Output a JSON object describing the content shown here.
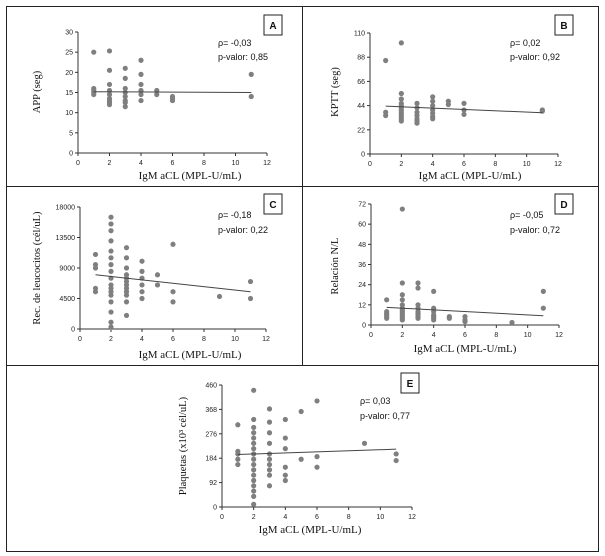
{
  "chart_data": [
    {
      "type": "scatter",
      "panel_label": "A",
      "xlabel": "IgM aCL (MPL-U/mL)",
      "ylabel": "APP (seg)",
      "xlim": [
        0,
        12
      ],
      "ylim": [
        0,
        30
      ],
      "xticks": [
        0,
        2,
        4,
        6,
        8,
        10,
        12
      ],
      "yticks": [
        0,
        5,
        10,
        15,
        20,
        25,
        30
      ],
      "xtick_labels": [
        "0",
        "2",
        "4",
        "6",
        "8",
        "10",
        "12"
      ],
      "ytick_labels": [
        "0",
        "5",
        "10",
        "15",
        "20",
        "25",
        "30"
      ],
      "rho": "ρ= -0,03",
      "pvalue": "p-valor: 0,85",
      "trend": [
        15.2,
        15.0
      ],
      "points": [
        [
          1,
          25
        ],
        [
          1,
          16
        ],
        [
          1,
          15.5
        ],
        [
          1,
          15
        ],
        [
          1,
          14.5
        ],
        [
          2,
          25.3
        ],
        [
          2,
          20.5
        ],
        [
          2,
          17
        ],
        [
          2,
          15.5
        ],
        [
          2,
          14.5
        ],
        [
          2,
          13.5
        ],
        [
          2,
          13
        ],
        [
          2,
          12.5
        ],
        [
          2,
          12
        ],
        [
          3,
          21
        ],
        [
          3,
          18.5
        ],
        [
          3,
          16
        ],
        [
          3,
          15
        ],
        [
          3,
          14
        ],
        [
          3,
          13
        ],
        [
          3,
          12.5
        ],
        [
          3,
          11.5
        ],
        [
          4,
          23
        ],
        [
          4,
          19.5
        ],
        [
          4,
          17
        ],
        [
          4,
          15.5
        ],
        [
          4,
          14.5
        ],
        [
          4,
          13
        ],
        [
          5,
          15.5
        ],
        [
          5,
          14.5
        ],
        [
          6,
          14
        ],
        [
          6,
          13.5
        ],
        [
          6,
          13
        ],
        [
          11,
          19.5
        ],
        [
          11,
          14
        ]
      ]
    },
    {
      "type": "scatter",
      "panel_label": "B",
      "xlabel": "IgM aCL (MPL-U/mL)",
      "ylabel": "KPTT (seg)",
      "xlim": [
        0,
        12
      ],
      "ylim": [
        0,
        110
      ],
      "xticks": [
        0,
        2,
        4,
        6,
        8,
        10,
        12
      ],
      "yticks": [
        0,
        22,
        44,
        66,
        88,
        110
      ],
      "xtick_labels": [
        "0",
        "2",
        "4",
        "6",
        "8",
        "10",
        "12"
      ],
      "ytick_labels": [
        "0",
        "22",
        "44",
        "66",
        "88",
        "110"
      ],
      "rho": "ρ= 0,02",
      "pvalue": "p-valor: 0,92",
      "trend": [
        43.5,
        37.5
      ],
      "points": [
        [
          1,
          85
        ],
        [
          1,
          38
        ],
        [
          1,
          35
        ],
        [
          2,
          101
        ],
        [
          2,
          55
        ],
        [
          2,
          50
        ],
        [
          2,
          46
        ],
        [
          2,
          44
        ],
        [
          2,
          42
        ],
        [
          2,
          40
        ],
        [
          2,
          38
        ],
        [
          2,
          36
        ],
        [
          2,
          34
        ],
        [
          2,
          32
        ],
        [
          2,
          30
        ],
        [
          3,
          46
        ],
        [
          3,
          42
        ],
        [
          3,
          38
        ],
        [
          3,
          35
        ],
        [
          3,
          32
        ],
        [
          3,
          30
        ],
        [
          3,
          28
        ],
        [
          4,
          52
        ],
        [
          4,
          48
        ],
        [
          4,
          44
        ],
        [
          4,
          40
        ],
        [
          4,
          37
        ],
        [
          4,
          34
        ],
        [
          4,
          32
        ],
        [
          5,
          48
        ],
        [
          5,
          45
        ],
        [
          6,
          46
        ],
        [
          6,
          40
        ],
        [
          6,
          36
        ],
        [
          11,
          40
        ],
        [
          11,
          39
        ]
      ]
    },
    {
      "type": "scatter",
      "panel_label": "C",
      "xlabel": "IgM aCL (MPL-U/mL)",
      "ylabel": "Rec. de leucocitos (cél/uL)",
      "xlim": [
        0,
        12
      ],
      "ylim": [
        0,
        18000
      ],
      "xticks": [
        0,
        2,
        4,
        6,
        8,
        10,
        12
      ],
      "yticks": [
        0,
        4500,
        9000,
        13500,
        18000
      ],
      "xtick_labels": [
        "0",
        "2",
        "4",
        "6",
        "8",
        "10",
        "12"
      ],
      "ytick_labels": [
        "0",
        "4500",
        "9000",
        "13500",
        "18000"
      ],
      "rho": "ρ= -0,18",
      "pvalue": "p-valor: 0,22",
      "trend": [
        8000,
        5500
      ],
      "points": [
        [
          1,
          11000
        ],
        [
          1,
          9500
        ],
        [
          1,
          9000
        ],
        [
          1,
          6000
        ],
        [
          1,
          5500
        ],
        [
          2,
          16500
        ],
        [
          2,
          15500
        ],
        [
          2,
          14500
        ],
        [
          2,
          13000
        ],
        [
          2,
          11500
        ],
        [
          2,
          10500
        ],
        [
          2,
          9500
        ],
        [
          2,
          8500
        ],
        [
          2,
          7500
        ],
        [
          2,
          6500
        ],
        [
          2,
          6000
        ],
        [
          2,
          5500
        ],
        [
          2,
          5000
        ],
        [
          2,
          4000
        ],
        [
          2,
          2500
        ],
        [
          2,
          1000
        ],
        [
          2,
          300
        ],
        [
          3,
          12000
        ],
        [
          3,
          10500
        ],
        [
          3,
          9000
        ],
        [
          3,
          8000
        ],
        [
          3,
          7500
        ],
        [
          3,
          7000
        ],
        [
          3,
          6500
        ],
        [
          3,
          6000
        ],
        [
          3,
          5500
        ],
        [
          3,
          5000
        ],
        [
          3,
          4000
        ],
        [
          3,
          2000
        ],
        [
          4,
          10000
        ],
        [
          4,
          8500
        ],
        [
          4,
          7500
        ],
        [
          4,
          6500
        ],
        [
          4,
          5500
        ],
        [
          4,
          4500
        ],
        [
          5,
          8000
        ],
        [
          5,
          6500
        ],
        [
          6,
          12500
        ],
        [
          6,
          5500
        ],
        [
          6,
          4000
        ],
        [
          9,
          4800
        ],
        [
          11,
          7000
        ],
        [
          11,
          4500
        ]
      ]
    },
    {
      "type": "scatter",
      "panel_label": "D",
      "xlabel": "IgM aCL (MPL-U/mL)",
      "ylabel": "Relación N/L",
      "xlim": [
        0,
        12
      ],
      "ylim": [
        0,
        72
      ],
      "xticks": [
        0,
        2,
        4,
        6,
        8,
        10,
        12
      ],
      "yticks": [
        0,
        12,
        24,
        36,
        48,
        60,
        72
      ],
      "xtick_labels": [
        "0",
        "2",
        "4",
        "6",
        "8",
        "10",
        "12"
      ],
      "ytick_labels": [
        "0",
        "12",
        "24",
        "36",
        "48",
        "60",
        "72"
      ],
      "rho": "ρ= -0,05",
      "pvalue": "p-valor: 0,72",
      "trend": [
        10.5,
        5.5
      ],
      "points": [
        [
          1,
          15
        ],
        [
          1,
          8
        ],
        [
          1,
          7
        ],
        [
          1,
          6
        ],
        [
          1,
          5
        ],
        [
          1,
          4
        ],
        [
          2,
          69
        ],
        [
          2,
          25
        ],
        [
          2,
          18
        ],
        [
          2,
          15
        ],
        [
          2,
          12
        ],
        [
          2,
          10
        ],
        [
          2,
          9
        ],
        [
          2,
          8
        ],
        [
          2,
          7
        ],
        [
          2,
          6
        ],
        [
          2,
          5
        ],
        [
          2,
          4
        ],
        [
          2,
          3
        ],
        [
          3,
          25
        ],
        [
          3,
          22
        ],
        [
          3,
          12
        ],
        [
          3,
          10
        ],
        [
          3,
          8
        ],
        [
          3,
          7
        ],
        [
          3,
          6
        ],
        [
          3,
          5
        ],
        [
          3,
          4
        ],
        [
          4,
          20
        ],
        [
          4,
          10
        ],
        [
          4,
          8
        ],
        [
          4,
          6
        ],
        [
          4,
          5
        ],
        [
          4,
          4
        ],
        [
          4,
          3
        ],
        [
          5,
          5
        ],
        [
          5,
          4
        ],
        [
          6,
          5
        ],
        [
          6,
          3
        ],
        [
          6,
          2
        ],
        [
          9,
          1.5
        ],
        [
          11,
          20
        ],
        [
          11,
          10
        ]
      ]
    },
    {
      "type": "scatter",
      "panel_label": "E",
      "xlabel": "IgM aCL (MPL-U/mL)",
      "ylabel": "Plaquetas (x10³ cél/uL)",
      "xlim": [
        0,
        12
      ],
      "ylim": [
        0,
        460
      ],
      "xticks": [
        0,
        2,
        4,
        6,
        8,
        10,
        12
      ],
      "yticks": [
        0,
        92,
        184,
        276,
        368,
        460
      ],
      "xtick_labels": [
        "0",
        "2",
        "4",
        "6",
        "8",
        "10",
        "12"
      ],
      "ytick_labels": [
        "0",
        "92",
        "184",
        "276",
        "368",
        "460"
      ],
      "rho": "ρ= 0,03",
      "pvalue": "p-valor: 0,77",
      "trend": [
        198,
        218
      ],
      "points": [
        [
          1,
          310
        ],
        [
          1,
          210
        ],
        [
          1,
          200
        ],
        [
          1,
          180
        ],
        [
          1,
          160
        ],
        [
          2,
          440
        ],
        [
          2,
          330
        ],
        [
          2,
          300
        ],
        [
          2,
          280
        ],
        [
          2,
          260
        ],
        [
          2,
          240
        ],
        [
          2,
          220
        ],
        [
          2,
          200
        ],
        [
          2,
          180
        ],
        [
          2,
          160
        ],
        [
          2,
          140
        ],
        [
          2,
          120
        ],
        [
          2,
          100
        ],
        [
          2,
          80
        ],
        [
          2,
          60
        ],
        [
          2,
          40
        ],
        [
          2,
          10
        ],
        [
          3,
          370
        ],
        [
          3,
          320
        ],
        [
          3,
          280
        ],
        [
          3,
          240
        ],
        [
          3,
          200
        ],
        [
          3,
          180
        ],
        [
          3,
          160
        ],
        [
          3,
          140
        ],
        [
          3,
          120
        ],
        [
          3,
          80
        ],
        [
          4,
          330
        ],
        [
          4,
          260
        ],
        [
          4,
          220
        ],
        [
          4,
          150
        ],
        [
          4,
          120
        ],
        [
          4,
          100
        ],
        [
          5,
          360
        ],
        [
          5,
          180
        ],
        [
          6,
          400
        ],
        [
          6,
          190
        ],
        [
          6,
          150
        ],
        [
          9,
          240
        ],
        [
          11,
          200
        ],
        [
          11,
          175
        ]
      ]
    }
  ]
}
